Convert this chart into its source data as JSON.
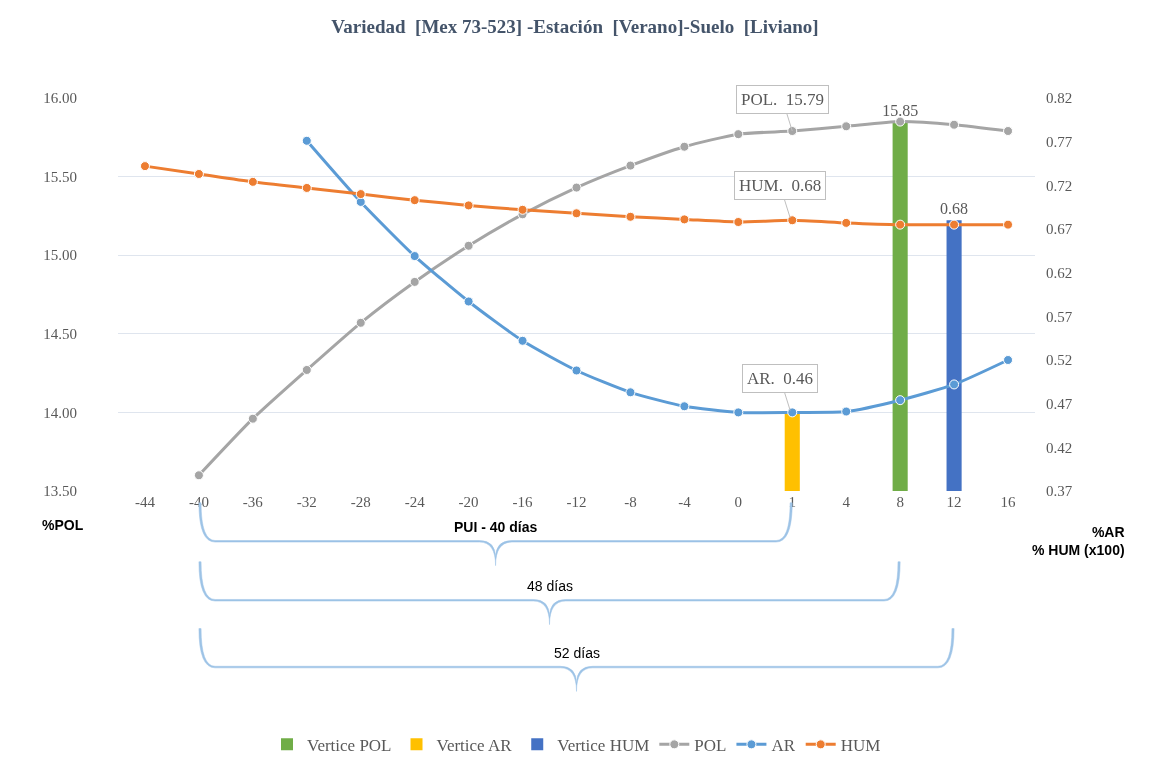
{
  "chart_data": {
    "type": "line",
    "title": "Variedad  [Mex 73-523] -Estación  [Verano]-Suelo  [Liviano]",
    "categories": [
      "-44",
      "-40",
      "-36",
      "-32",
      "-28",
      "-24",
      "-20",
      "-16",
      "-12",
      "-8",
      "-4",
      "0",
      "1",
      "4",
      "8",
      "12",
      "16"
    ],
    "series": [
      {
        "name": "Vertice POL",
        "type": "bar",
        "color": "#70ad47",
        "values": [
          null,
          null,
          null,
          null,
          null,
          null,
          null,
          null,
          null,
          null,
          null,
          null,
          null,
          null,
          15.85,
          null,
          null
        ],
        "value_labels": [
          null,
          null,
          null,
          null,
          null,
          null,
          null,
          null,
          null,
          null,
          null,
          null,
          null,
          null,
          "15.85",
          null,
          null
        ]
      },
      {
        "name": "Vertice AR",
        "type": "bar",
        "axis": "y2",
        "color": "#ffc000",
        "values": [
          null,
          null,
          null,
          null,
          null,
          null,
          null,
          null,
          null,
          null,
          null,
          null,
          0.46,
          null,
          null,
          null,
          null
        ]
      },
      {
        "name": "Vertice HUM",
        "type": "bar",
        "axis": "y2",
        "color": "#4472c4",
        "values": [
          null,
          null,
          null,
          null,
          null,
          null,
          null,
          null,
          null,
          null,
          null,
          null,
          null,
          null,
          null,
          0.68,
          null
        ],
        "value_labels": [
          null,
          null,
          null,
          null,
          null,
          null,
          null,
          null,
          null,
          null,
          null,
          null,
          null,
          null,
          null,
          "0.68",
          null
        ]
      },
      {
        "name": "POL",
        "color": "#a5a5a5",
        "values": [
          null,
          13.6,
          13.96,
          14.27,
          14.57,
          14.83,
          15.06,
          15.26,
          15.43,
          15.57,
          15.69,
          15.77,
          15.79,
          15.82,
          15.85,
          15.83,
          15.79
        ]
      },
      {
        "name": "AR",
        "axis": "y2",
        "color": "#5b9bd5",
        "values": [
          null,
          null,
          null,
          0.771,
          0.701,
          0.639,
          0.587,
          0.542,
          0.508,
          0.483,
          0.467,
          0.46,
          0.46,
          0.461,
          0.474,
          0.492,
          0.52
        ]
      },
      {
        "name": "HUM",
        "axis": "y2",
        "color": "#ed7d31",
        "values": [
          0.742,
          0.733,
          0.724,
          0.717,
          0.71,
          0.703,
          0.697,
          0.692,
          0.688,
          0.684,
          0.681,
          0.678,
          0.68,
          0.677,
          0.675,
          0.675,
          0.675
        ]
      }
    ],
    "ylim": [
      13.5,
      16.0
    ],
    "yticks": [
      {
        "value": 13.5,
        "label": "13.50"
      },
      {
        "value": 14.0,
        "label": "14.00"
      },
      {
        "value": 14.5,
        "label": "14.50"
      },
      {
        "value": 15.0,
        "label": "15.00"
      },
      {
        "value": 15.5,
        "label": "15.50"
      },
      {
        "value": 16.0,
        "label": "16.00"
      }
    ],
    "y2lim": [
      0.37,
      0.82
    ],
    "y2ticks": [
      0.37,
      0.42,
      0.47,
      0.52,
      0.57,
      0.62,
      0.67,
      0.72,
      0.77,
      0.82
    ],
    "ylabel": "%POL",
    "y2label": "%AR\n% HUM (x100)",
    "annotations": [
      {
        "text": "POL.  15.79",
        "x": "1",
        "y": 15.79
      },
      "HUM.  0.68",
      "AR.  0.46",
      "PUI - 40 días",
      "48 días",
      "52 días"
    ],
    "grid": "y",
    "legend": "bottom",
    "marker": "circle",
    "line_style": "solid"
  }
}
